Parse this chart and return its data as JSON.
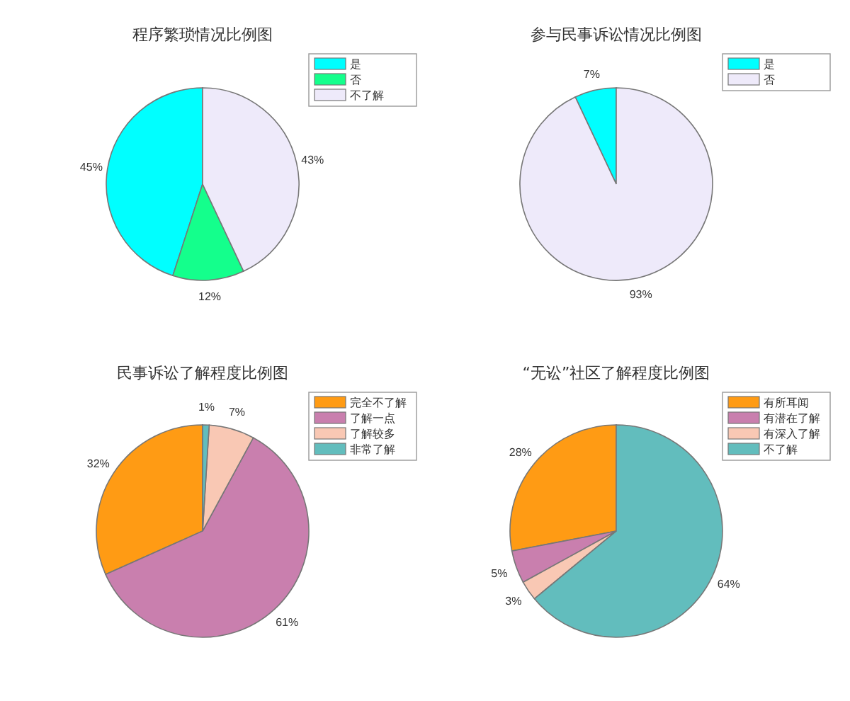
{
  "chart_data": [
    {
      "type": "pie",
      "title": "程序繁琐情况比例图",
      "categories": [
        "是",
        "否",
        "不了解"
      ],
      "values": [
        45,
        12,
        43
      ],
      "value_labels": [
        "45%",
        "12%",
        "43%"
      ],
      "colors": [
        "#00ffff",
        "#14ff8c",
        "#eeeafa"
      ],
      "legend": "top right"
    },
    {
      "type": "pie",
      "title": "参与民事诉讼情况比例图",
      "categories": [
        "是",
        "否"
      ],
      "values": [
        7,
        93
      ],
      "value_labels": [
        "7%",
        "93%"
      ],
      "colors": [
        "#00ffff",
        "#eeeafa"
      ],
      "legend": "top right"
    },
    {
      "type": "pie",
      "title": "民事诉讼了解程度比例图",
      "categories": [
        "完全不了解",
        "了解一点",
        "了解较多",
        "非常了解"
      ],
      "values": [
        32,
        61,
        7,
        1
      ],
      "value_labels": [
        "32%",
        "61%",
        "7%",
        "1%"
      ],
      "colors": [
        "#ff9b14",
        "#c97fae",
        "#f9c8b4",
        "#62bdbd"
      ],
      "legend": "top right"
    },
    {
      "type": "pie",
      "title": "“无讼”社区了解程度比例图",
      "categories": [
        "有所耳闻",
        "有潜在了解",
        "有深入了解",
        "不了解"
      ],
      "values": [
        28,
        5,
        3,
        64
      ],
      "value_labels": [
        "28%",
        "5%",
        "3%",
        "64%"
      ],
      "colors": [
        "#ff9b14",
        "#c97fae",
        "#f9c8b4",
        "#62bdbd"
      ],
      "legend": "top right"
    }
  ]
}
